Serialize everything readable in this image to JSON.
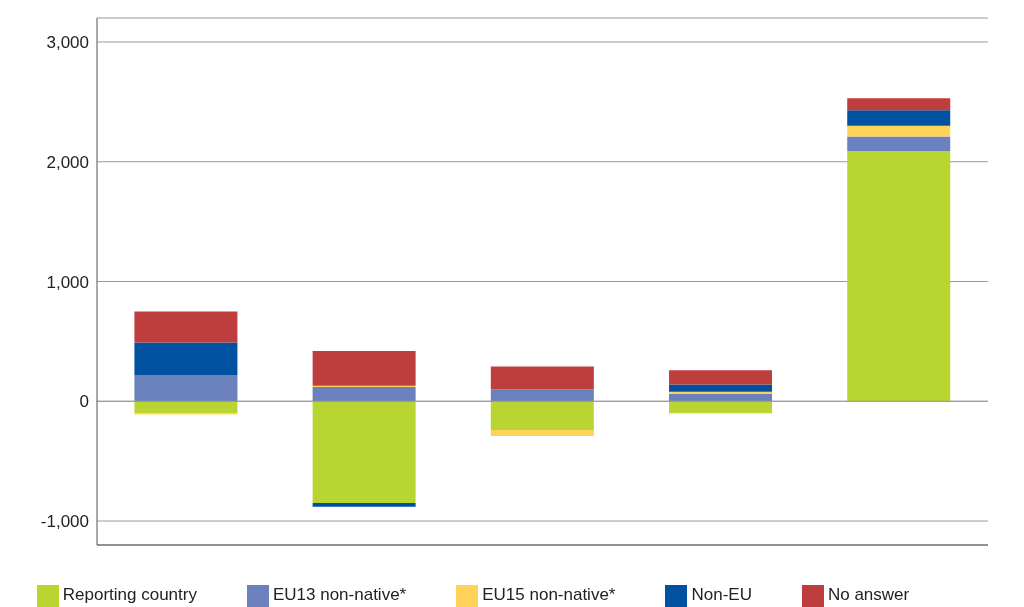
{
  "chart_data": {
    "type": "bar",
    "stacked": true,
    "categories": [
      null,
      null,
      null,
      null,
      null
    ],
    "series": [
      {
        "name": "Reporting country",
        "color": "#b9d532",
        "values": [
          -100,
          -850,
          -240,
          -100,
          2090
        ]
      },
      {
        "name": "EU13 non-native*",
        "color": "#6a81be",
        "values": [
          220,
          120,
          100,
          60,
          120
        ]
      },
      {
        "name": "EU15 non-native*",
        "color": "#ffd25a",
        "values": [
          -10,
          10,
          -50,
          20,
          90
        ]
      },
      {
        "name": "Non-EU",
        "color": "#0052a0",
        "values": [
          270,
          -30,
          0,
          60,
          130
        ]
      },
      {
        "name": "No answer",
        "color": "#be3e3e",
        "values": [
          260,
          290,
          190,
          120,
          100
        ]
      }
    ],
    "ylim": [
      -1200,
      3200
    ],
    "yticks": [
      {
        "value": -1000,
        "label": "-1,000"
      },
      0,
      {
        "value": 1000,
        "label": "1,000"
      },
      {
        "value": 2000,
        "label": "2,000"
      },
      {
        "value": 3000,
        "label": "3,000"
      }
    ],
    "grid": "y",
    "legend": "bottom"
  }
}
